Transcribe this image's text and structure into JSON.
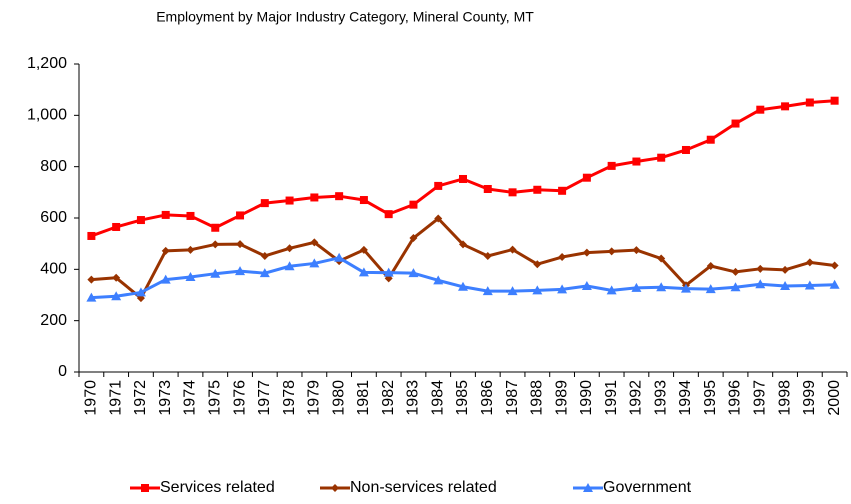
{
  "chart_data": {
    "type": "line",
    "title": "Employment by Major Industry Category, Mineral County, MT",
    "categories": [
      "1970",
      "1971",
      "1972",
      "1973",
      "1974",
      "1975",
      "1976",
      "1977",
      "1978",
      "1979",
      "1980",
      "1981",
      "1982",
      "1983",
      "1984",
      "1985",
      "1986",
      "1987",
      "1988",
      "1989",
      "1990",
      "1991",
      "1992",
      "1993",
      "1994",
      "1995",
      "1996",
      "1997",
      "1998",
      "1999",
      "2000"
    ],
    "series": [
      {
        "name": "Services related",
        "color": "#ff0000",
        "marker": "square",
        "values": [
          530,
          565,
          592,
          612,
          608,
          562,
          610,
          658,
          668,
          680,
          685,
          670,
          615,
          652,
          725,
          752,
          713,
          700,
          710,
          706,
          757,
          803,
          820,
          835,
          865,
          905,
          968,
          1022,
          1035,
          1050,
          1057
        ]
      },
      {
        "name": "Non-services related",
        "color": "#993300",
        "marker": "diamond",
        "values": [
          360,
          367,
          288,
          472,
          476,
          497,
          498,
          452,
          482,
          505,
          432,
          476,
          365,
          522,
          598,
          497,
          452,
          477,
          420,
          448,
          465,
          470,
          475,
          442,
          338,
          413,
          390,
          402,
          398,
          427,
          415
        ]
      },
      {
        "name": "Government",
        "color": "#3d7fff",
        "marker": "triangle",
        "values": [
          290,
          295,
          310,
          360,
          370,
          383,
          393,
          385,
          412,
          423,
          445,
          388,
          387,
          385,
          357,
          332,
          315,
          315,
          318,
          322,
          335,
          318,
          328,
          330,
          325,
          323,
          330,
          342,
          335,
          337,
          340
        ]
      }
    ],
    "ylim": [
      0,
      1200
    ],
    "yticks": [
      0,
      200,
      400,
      600,
      800,
      {
        "value": 1000,
        "label": "1,000"
      },
      {
        "value": 1200,
        "label": "1,200"
      }
    ],
    "grid": false,
    "legend": "bottom"
  }
}
